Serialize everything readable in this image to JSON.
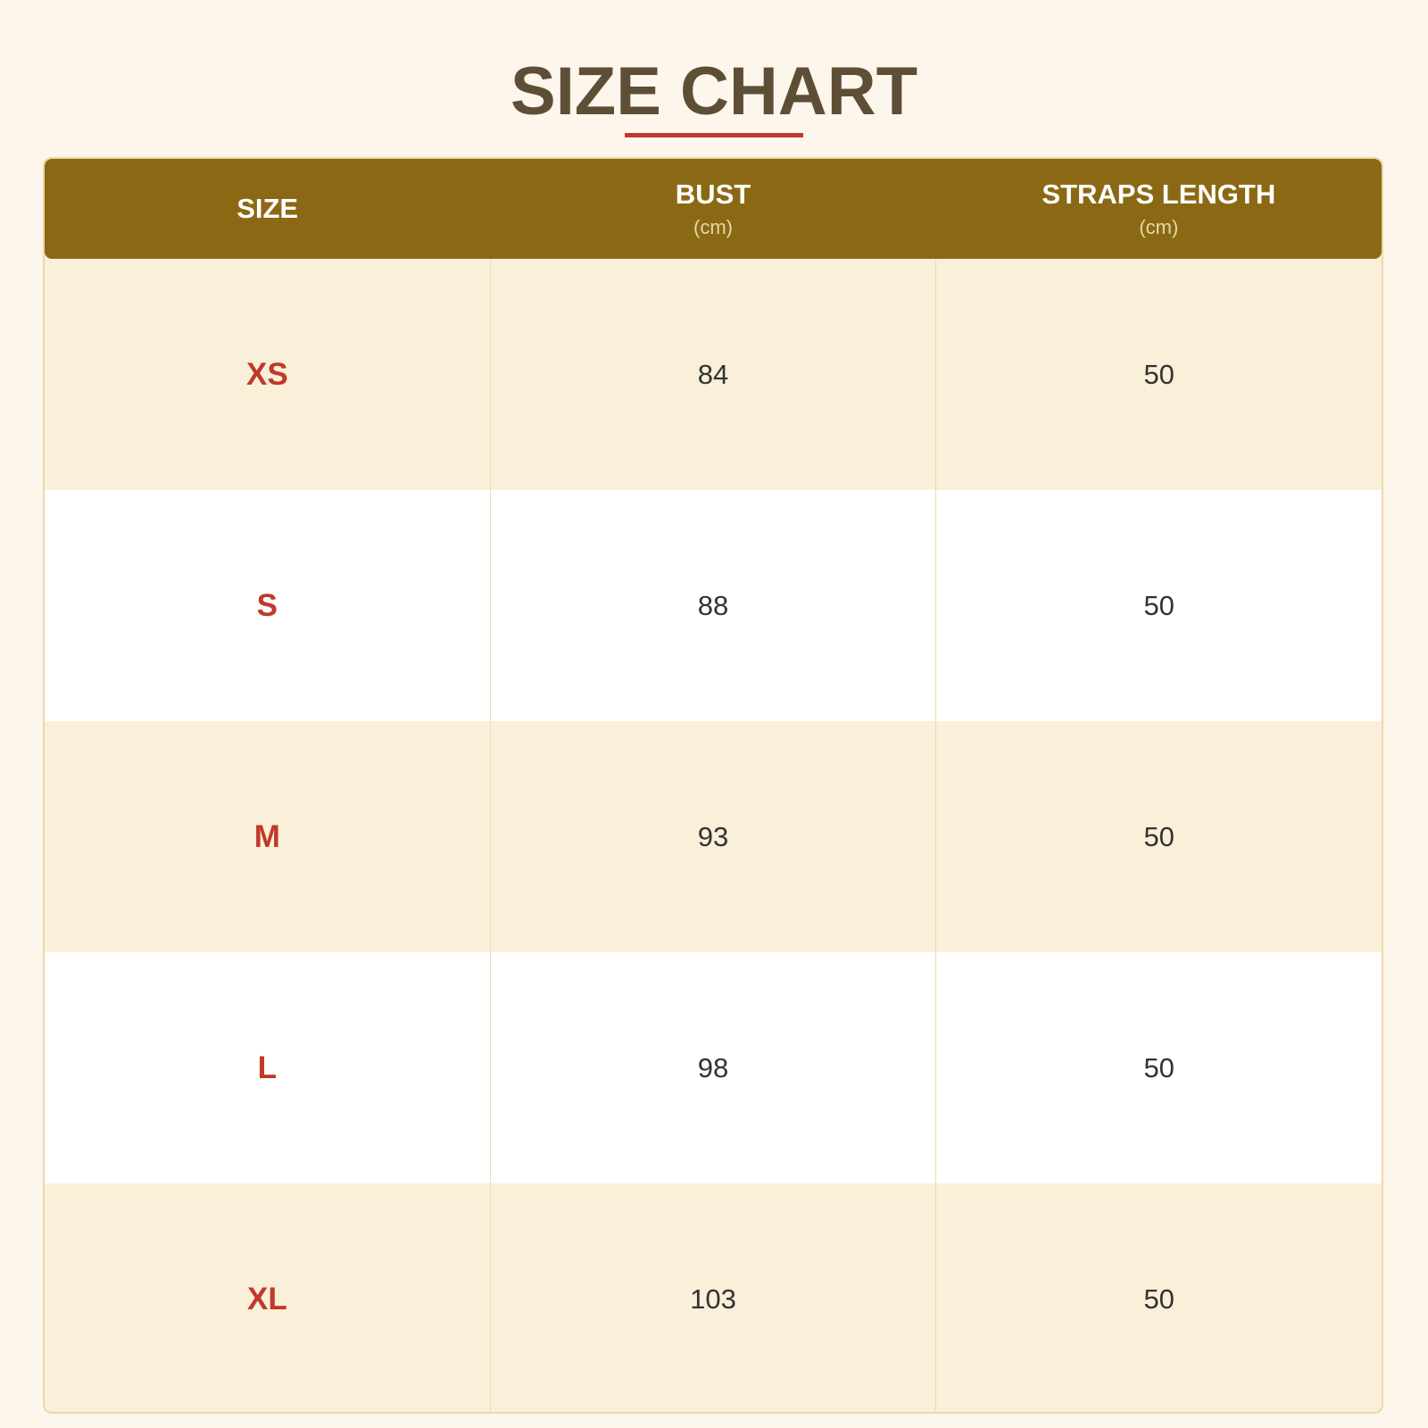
{
  "title": "SIZE CHART",
  "colors": {
    "header_bg": "#8b6914",
    "accent": "#c0392b",
    "title": "#5e4e36",
    "row_alt": "#faefd9"
  },
  "headers": [
    {
      "label": "SIZE",
      "unit": ""
    },
    {
      "label": "BUST",
      "unit": "(cm)"
    },
    {
      "label": "STRAPS LENGTH",
      "unit": "(cm)"
    }
  ],
  "rows": [
    {
      "size": "XS",
      "bust": "84",
      "straps": "50"
    },
    {
      "size": "S",
      "bust": "88",
      "straps": "50"
    },
    {
      "size": "M",
      "bust": "93",
      "straps": "50"
    },
    {
      "size": "L",
      "bust": "98",
      "straps": "50"
    },
    {
      "size": "XL",
      "bust": "103",
      "straps": "50"
    }
  ]
}
